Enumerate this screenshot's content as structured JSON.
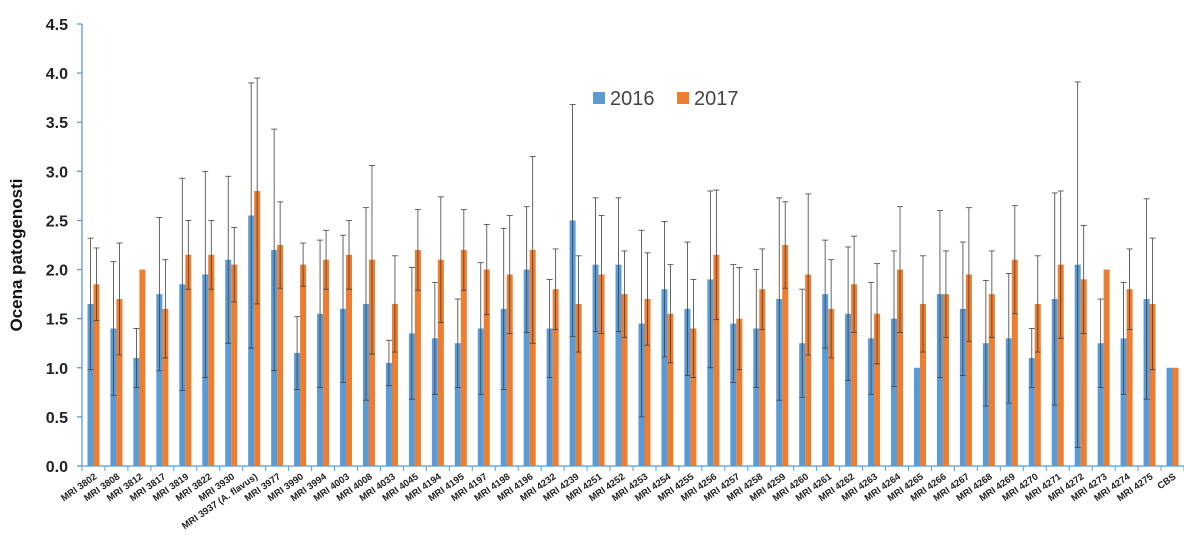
{
  "chart_data": {
    "type": "bar",
    "title": "",
    "xlabel": "",
    "ylabel": "Ocena patogenosti",
    "ylim": [
      0,
      4.5
    ],
    "yticks": [
      "0.0",
      "0.5",
      "1.0",
      "1.5",
      "2.0",
      "2.5",
      "3.0",
      "3.5",
      "4.0",
      "4.5"
    ],
    "grid": false,
    "legend_position": "top-center",
    "categories": [
      "MRI 3802",
      "MRI 3808",
      "MRI 3812",
      "MRI 3817",
      "MRI 3819",
      "MRI 3822",
      "MRI 3930",
      "MRI 3937 (A. flavus)",
      "MRI 3977",
      "MRI 3990",
      "MRI 3994",
      "MRI 4003",
      "MRI 4008",
      "MRI 4033",
      "MRI 4045",
      "MRI 4194",
      "MRI 4195",
      "MRI 4197",
      "MRI 4198",
      "MRI 4196",
      "MRI 4232",
      "MRI 4239",
      "MRI 4251",
      "MRI 4252",
      "MRI 4253",
      "MRI 4254",
      "MRI 4255",
      "MRI 4256",
      "MRI 4257",
      "MRI 4258",
      "MRI 4259",
      "MRI 4260",
      "MRI 4261",
      "MRI 4262",
      "MRI 4263",
      "MRI 4264",
      "MRI 4265",
      "MRI 4266",
      "MRI 4267",
      "MRI 4268",
      "MRI 4269",
      "MRI 4270",
      "MRI 4271",
      "MRI 4272",
      "MRI 4273",
      "MRI 4274",
      "MRI 4275",
      "CBS"
    ],
    "series": [
      {
        "name": "2016",
        "color": "#5B9BD5",
        "values": [
          1.65,
          1.4,
          1.1,
          1.75,
          1.85,
          1.95,
          2.1,
          2.55,
          2.2,
          1.15,
          1.55,
          1.6,
          1.65,
          1.05,
          1.35,
          1.3,
          1.25,
          1.4,
          1.6,
          2.0,
          1.4,
          2.5,
          2.05,
          2.05,
          1.45,
          1.8,
          1.6,
          1.9,
          1.45,
          1.4,
          1.7,
          1.25,
          1.75,
          1.55,
          1.3,
          1.5,
          1.0,
          1.75,
          1.6,
          1.25,
          1.3,
          1.1,
          1.7,
          2.05,
          1.25,
          1.3,
          1.7,
          1.0
        ],
        "error": [
          0.67,
          0.68,
          0.3,
          0.78,
          1.08,
          1.05,
          0.85,
          1.35,
          1.23,
          0.37,
          0.75,
          0.75,
          0.98,
          0.23,
          0.67,
          0.57,
          0.45,
          0.67,
          0.82,
          0.64,
          0.5,
          1.18,
          0.68,
          0.68,
          0.95,
          0.69,
          0.68,
          0.9,
          0.6,
          0.6,
          1.03,
          0.55,
          0.55,
          0.68,
          0.57,
          0.69,
          0.0,
          0.85,
          0.68,
          0.64,
          0.66,
          0.3,
          1.08,
          1.86,
          0.45,
          0.57,
          1.02,
          0.0
        ]
      },
      {
        "name": "2017",
        "color": "#ED7D31",
        "values": [
          1.85,
          1.7,
          2.0,
          1.6,
          2.15,
          2.15,
          2.05,
          2.8,
          2.25,
          2.05,
          2.1,
          2.15,
          2.1,
          1.65,
          2.2,
          2.1,
          2.2,
          2.0,
          1.95,
          2.2,
          1.8,
          1.65,
          1.95,
          1.75,
          1.7,
          1.55,
          1.4,
          2.15,
          1.5,
          1.8,
          2.25,
          1.95,
          1.6,
          1.85,
          1.55,
          2.0,
          1.65,
          1.75,
          1.95,
          1.75,
          2.1,
          1.65,
          2.05,
          1.9,
          2.0,
          1.8,
          1.65,
          1.0
        ],
        "error": [
          0.37,
          0.57,
          0.0,
          0.5,
          0.35,
          0.35,
          0.38,
          1.15,
          0.44,
          0.22,
          0.3,
          0.35,
          0.96,
          0.49,
          0.41,
          0.64,
          0.41,
          0.46,
          0.6,
          0.95,
          0.41,
          0.49,
          0.6,
          0.44,
          0.47,
          0.5,
          0.5,
          0.66,
          0.52,
          0.41,
          0.44,
          0.82,
          0.5,
          0.49,
          0.51,
          0.64,
          0.49,
          0.44,
          0.68,
          0.44,
          0.55,
          0.49,
          0.75,
          0.55,
          0.0,
          0.41,
          0.67,
          0.0
        ]
      }
    ]
  }
}
